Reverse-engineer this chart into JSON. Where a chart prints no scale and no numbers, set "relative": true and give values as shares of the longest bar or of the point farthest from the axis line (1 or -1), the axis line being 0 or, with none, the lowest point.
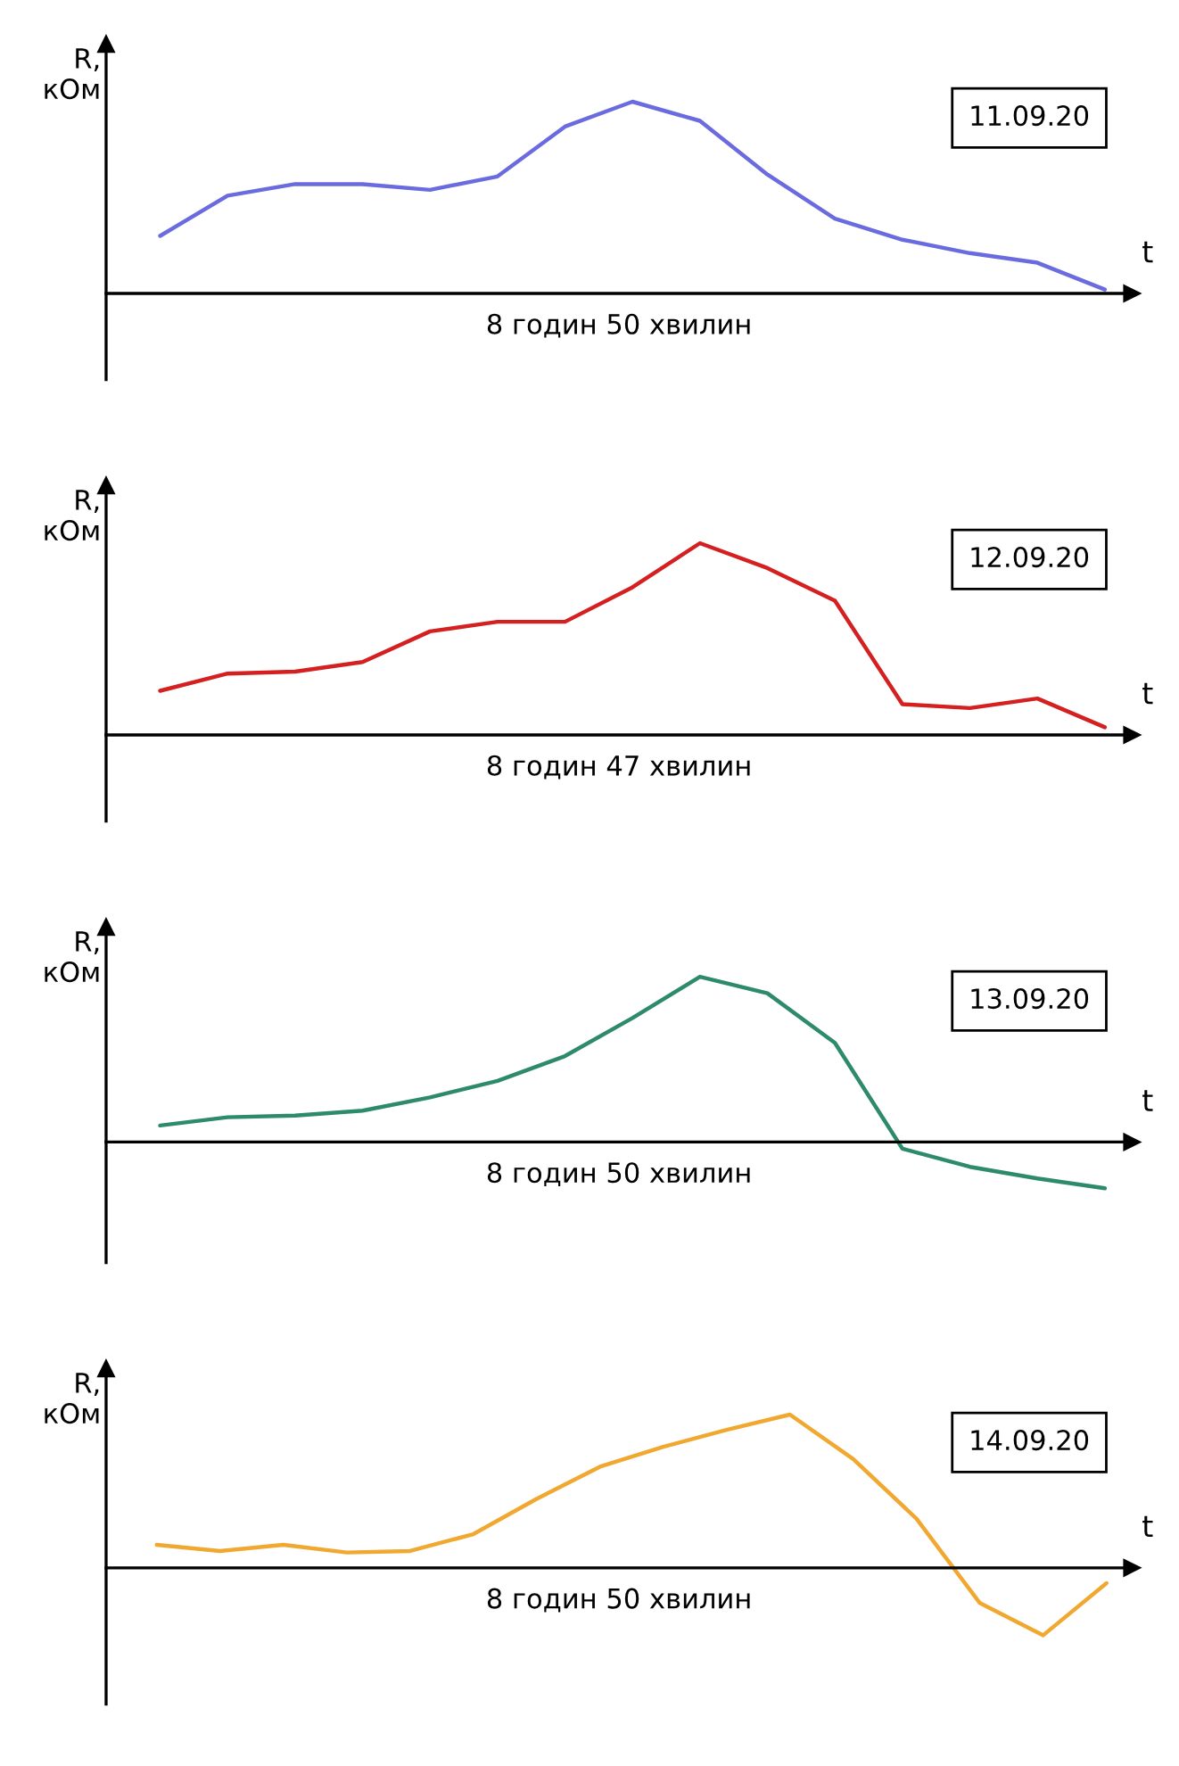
{
  "chart_data": [
    {
      "type": "line",
      "relative": true,
      "title": "11.09.20",
      "xlabel": "t",
      "ylabel": "R,\nкОм",
      "annotations": [
        "8 годин 50 хвилин"
      ],
      "categories": [
        null,
        null,
        null,
        null,
        null,
        null,
        null,
        null,
        null,
        null,
        null,
        null,
        null,
        null,
        null
      ],
      "series": [
        {
          "color": "#6b6be0",
          "values": [
            0.3,
            0.51,
            0.57,
            0.57,
            0.54,
            0.61,
            0.87,
            1.0,
            0.9,
            0.62,
            0.39,
            0.28,
            0.21,
            0.16,
            0.02
          ]
        }
      ]
    },
    {
      "type": "line",
      "relative": true,
      "title": "12.09.20",
      "xlabel": "t",
      "ylabel": "R,\nкОм",
      "annotations": [
        "8 годин 47 хвилин"
      ],
      "categories": [
        null,
        null,
        null,
        null,
        null,
        null,
        null,
        null,
        null,
        null,
        null,
        null,
        null,
        null,
        null
      ],
      "series": [
        {
          "color": "#d42020",
          "values": [
            0.23,
            0.32,
            0.33,
            0.38,
            0.54,
            0.59,
            0.59,
            0.77,
            1.0,
            0.87,
            0.7,
            0.16,
            0.14,
            0.19,
            0.04
          ]
        }
      ]
    },
    {
      "type": "line",
      "relative": true,
      "title": "13.09.20",
      "xlabel": "t",
      "ylabel": "R,\nкОм",
      "annotations": [
        "8 годин 50 хвилин"
      ],
      "categories": [
        null,
        null,
        null,
        null,
        null,
        null,
        null,
        null,
        null,
        null,
        null,
        null,
        null,
        null,
        null
      ],
      "series": [
        {
          "color": "#2e8b6a",
          "values": [
            0.1,
            0.15,
            0.16,
            0.19,
            0.27,
            0.37,
            0.52,
            0.75,
            1.0,
            0.9,
            0.6,
            -0.04,
            -0.15,
            -0.22,
            -0.28
          ]
        }
      ]
    },
    {
      "type": "line",
      "relative": true,
      "title": "14.09.20",
      "xlabel": "t",
      "ylabel": "R,\nкОм",
      "annotations": [
        "8 годин 50 хвилин"
      ],
      "categories": [
        null,
        null,
        null,
        null,
        null,
        null,
        null,
        null,
        null,
        null,
        null,
        null,
        null,
        null,
        null,
        null
      ],
      "series": [
        {
          "color": "#f0a830",
          "values": [
            0.15,
            0.11,
            0.15,
            0.1,
            0.11,
            0.22,
            0.45,
            0.66,
            0.79,
            0.9,
            1.0,
            0.71,
            0.32,
            -0.23,
            -0.44,
            -0.1
          ]
        }
      ]
    }
  ]
}
